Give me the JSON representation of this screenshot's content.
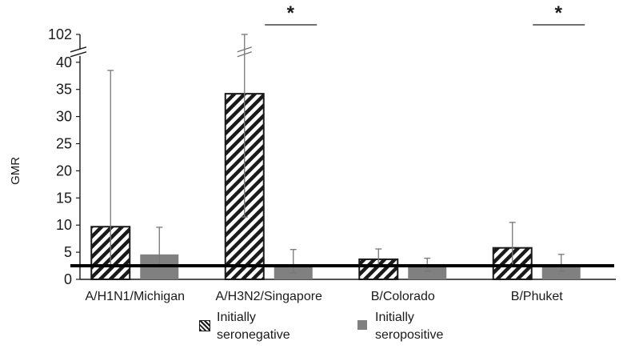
{
  "chart_data": {
    "type": "bar",
    "ylabel": "GMR",
    "xlabel": "",
    "title": "",
    "categories": [
      "A/H1N1/Michigan",
      "A/H3N2/Singapore",
      "B/Colorado",
      "B/Phuket"
    ],
    "series": [
      {
        "name": "Initially seronegative",
        "pattern": "diagonal-hatch",
        "color": "#1a1a1a",
        "values": [
          9.7,
          34.2,
          3.7,
          5.8
        ],
        "error_low": [
          2.5,
          11.5,
          2.3,
          2.5
        ],
        "error_high": [
          38.5,
          102,
          5.6,
          10.5
        ]
      },
      {
        "name": "Initially seropositive",
        "pattern": "solid",
        "color": "#808080",
        "values": [
          4.6,
          2.4,
          2.4,
          2.4
        ],
        "error_low": [
          2.5,
          1.2,
          1.5,
          1.5
        ],
        "error_high": [
          9.6,
          5.5,
          3.9,
          4.6
        ]
      }
    ],
    "reference_line": 2.5,
    "ylim": [
      0,
      42
    ],
    "axis_break": {
      "from": 40,
      "to": 102
    },
    "yticks": [
      "0",
      "5",
      "10",
      "15",
      "20",
      "25",
      "30",
      "35",
      "40",
      "102"
    ],
    "significance": [
      {
        "category": "A/H3N2/Singapore",
        "marker": "*"
      },
      {
        "category": "B/Phuket",
        "marker": "*"
      }
    ],
    "grid": false,
    "legend_position": "bottom"
  },
  "legend": {
    "items": [
      {
        "label": "Initially seronegative",
        "pattern": "diagonal-hatch"
      },
      {
        "label": "Initially seropositive",
        "pattern": "solid",
        "color": "#808080"
      }
    ]
  }
}
